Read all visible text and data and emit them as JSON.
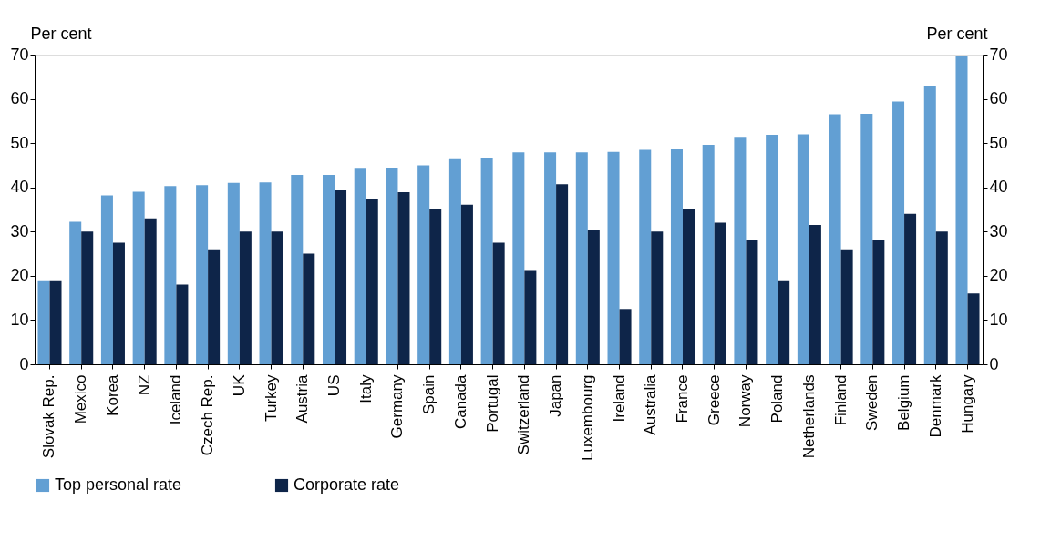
{
  "chart_data": {
    "type": "bar",
    "ylabel": "Per cent",
    "y2label": "Per cent",
    "categories": [
      "Slovak Rep.",
      "Mexico",
      "Korea",
      "NZ",
      "Iceland",
      "Czech Rep.",
      "UK",
      "Turkey",
      "Austria",
      "US",
      "Italy",
      "Germany",
      "Spain",
      "Canada",
      "Portugal",
      "Switzerland",
      "Japan",
      "Luxembourg",
      "Ireland",
      "Australia",
      "France",
      "Greece",
      "Norway",
      "Poland",
      "Netherlands",
      "Finland",
      "Sweden",
      "Belgium",
      "Denmark",
      "Hungary"
    ],
    "series": [
      {
        "name": "Top personal rate",
        "color": "#629fd3",
        "values": [
          19,
          32.2,
          38.2,
          39,
          40.3,
          40.5,
          41,
          41.1,
          42.8,
          42.8,
          44.2,
          44.3,
          45,
          46.4,
          46.6,
          47.9,
          47.9,
          47.9,
          48,
          48.5,
          48.6,
          49.6,
          51.4,
          51.9,
          52,
          56.5,
          56.6,
          59.4,
          63,
          69.7
        ]
      },
      {
        "name": "Corporate rate",
        "color": "#0e2549",
        "values": [
          19,
          30,
          27.5,
          33,
          18,
          26,
          30,
          30,
          25,
          39.3,
          37.3,
          38.9,
          35,
          36.1,
          27.5,
          21.3,
          40.7,
          30.4,
          12.5,
          30,
          35,
          32,
          28,
          19,
          31.5,
          26,
          28,
          34,
          30,
          16
        ]
      }
    ],
    "ylim": [
      0,
      70
    ],
    "yticks": [
      0,
      10,
      20,
      30,
      40,
      50,
      60,
      70
    ],
    "y2lim": [
      0,
      70
    ],
    "y2ticks": [
      0,
      10,
      20,
      30,
      40,
      50,
      60,
      70
    ],
    "grid": false,
    "legend": "bottom"
  }
}
